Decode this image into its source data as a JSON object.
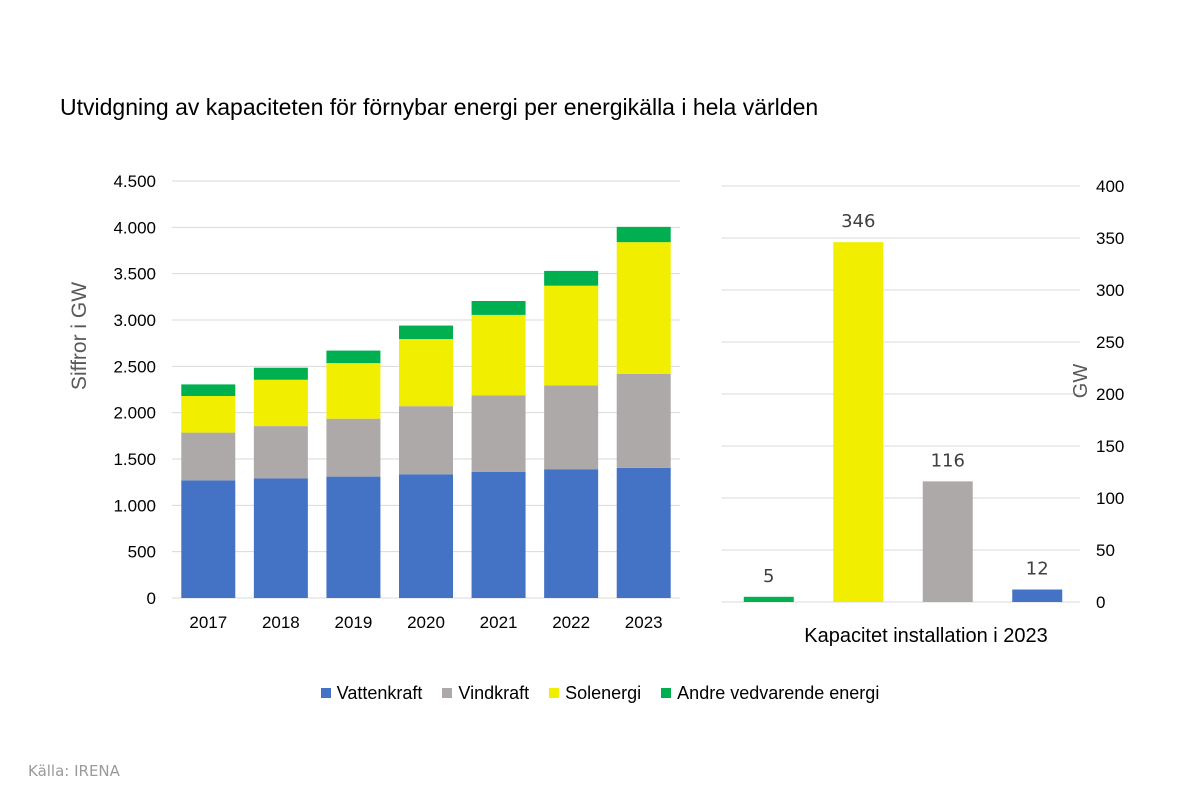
{
  "title": "Utvidgning av kapaciteten för förnybar energi per energikälla i hela världen",
  "source": "Källa: IRENA",
  "colors": {
    "Vattenkraft": "#4472C4",
    "Vindkraft": "#ADA9A9",
    "Solenergi": "#F2EE00",
    "Andre vedvarende energi": "#00B050",
    "grid": "#D9D9D9",
    "axis_text": "#000000",
    "ylabel": "#595959"
  },
  "legend": [
    {
      "label": "Vattenkraft",
      "color": "#4472C4"
    },
    {
      "label": "Vindkraft",
      "color": "#ADA9A9"
    },
    {
      "label": "Solenergi",
      "color": "#F2EE00"
    },
    {
      "label": "Andre vedvarende energi",
      "color": "#00B050"
    }
  ],
  "chart_data": [
    {
      "type": "bar",
      "stacked": true,
      "title": "",
      "ylabel": "Siffror i GW",
      "xlabel": "",
      "ylim": [
        0,
        4500
      ],
      "yticks": [
        0,
        500,
        1000,
        1500,
        2000,
        2500,
        3000,
        3500,
        4000,
        4500
      ],
      "ytick_labels": [
        "0",
        "500",
        "1.000",
        "1.500",
        "2.000",
        "2.500",
        "3.000",
        "3.500",
        "4.000",
        "4.500"
      ],
      "categories": [
        "2017",
        "2018",
        "2019",
        "2020",
        "2021",
        "2022",
        "2023"
      ],
      "series": [
        {
          "name": "Vattenkraft",
          "color": "#4472C4",
          "values": [
            1270,
            1290,
            1310,
            1335,
            1360,
            1390,
            1405
          ]
        },
        {
          "name": "Vindkraft",
          "color": "#ADA9A9",
          "values": [
            515,
            565,
            625,
            735,
            825,
            905,
            1015
          ]
        },
        {
          "name": "Solenergi",
          "color": "#F2EE00",
          "values": [
            395,
            500,
            600,
            725,
            870,
            1075,
            1420
          ]
        },
        {
          "name": "Andre vedvarende energi",
          "color": "#00B050",
          "values": [
            125,
            130,
            135,
            145,
            150,
            160,
            165
          ]
        }
      ],
      "grid": true
    },
    {
      "type": "bar",
      "title": "",
      "xlabel": "Kapacitet installation i 2023",
      "ylabel": "GW",
      "ylim": [
        0,
        400
      ],
      "yticks": [
        0,
        50,
        100,
        150,
        200,
        250,
        300,
        350,
        400
      ],
      "ytick_labels": [
        "0",
        "50",
        "100",
        "150",
        "200",
        "250",
        "300",
        "350",
        "400"
      ],
      "axis_side": "right",
      "categories": [
        "Andre vedvarende energi",
        "Solenergi",
        "Vindkraft",
        "Vattenkraft"
      ],
      "values": [
        5,
        346,
        116,
        12
      ],
      "data_labels": [
        "5",
        "346",
        "116",
        "12"
      ],
      "colors": [
        "#00B050",
        "#F2EE00",
        "#ADA9A9",
        "#4472C4"
      ],
      "grid": true
    }
  ]
}
